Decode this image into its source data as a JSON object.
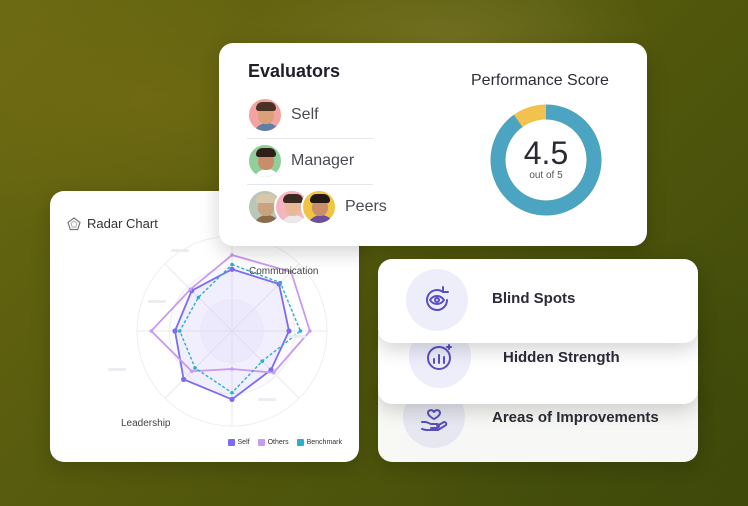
{
  "evaluators": {
    "title": "Evaluators",
    "rows": [
      {
        "label": "Self"
      },
      {
        "label": "Manager"
      },
      {
        "label": "Peers"
      }
    ]
  },
  "performance": {
    "title": "Performance Score",
    "score": "4.5",
    "subtitle": "out of 5",
    "fraction": 0.9,
    "colors": {
      "filled": "#4ba5c2",
      "remaining": "#f2c14e"
    }
  },
  "radar": {
    "title": "Radar Chart",
    "legend": [
      {
        "label": "Self",
        "color": "#7b6cf0"
      },
      {
        "label": "Others",
        "color": "#c89af0"
      },
      {
        "label": "Benchmark",
        "color": "#2ab0c8"
      }
    ]
  },
  "chart_data": {
    "type": "radar",
    "title": "Radar Chart",
    "axes": [
      "",
      "Communication",
      "",
      "",
      "",
      "Leadership",
      "",
      ""
    ],
    "series": [
      {
        "name": "Self",
        "values": [
          0.65,
          0.7,
          0.6,
          0.58,
          0.72,
          0.72,
          0.6,
          0.6
        ]
      },
      {
        "name": "Others",
        "values": [
          0.8,
          0.88,
          0.82,
          0.62,
          0.4,
          0.6,
          0.85,
          0.62
        ]
      },
      {
        "name": "Benchmark",
        "values": [
          0.7,
          0.72,
          0.72,
          0.45,
          0.65,
          0.55,
          0.55,
          0.5
        ]
      }
    ],
    "range": [
      0,
      1
    ]
  },
  "insights": [
    {
      "label": "Blind Spots",
      "icon": "eye-refresh-icon"
    },
    {
      "label": "Hidden Strength",
      "icon": "bar-chart-sparkle-icon"
    },
    {
      "label": "Areas of Improvements",
      "icon": "hand-heart-icon"
    }
  ]
}
